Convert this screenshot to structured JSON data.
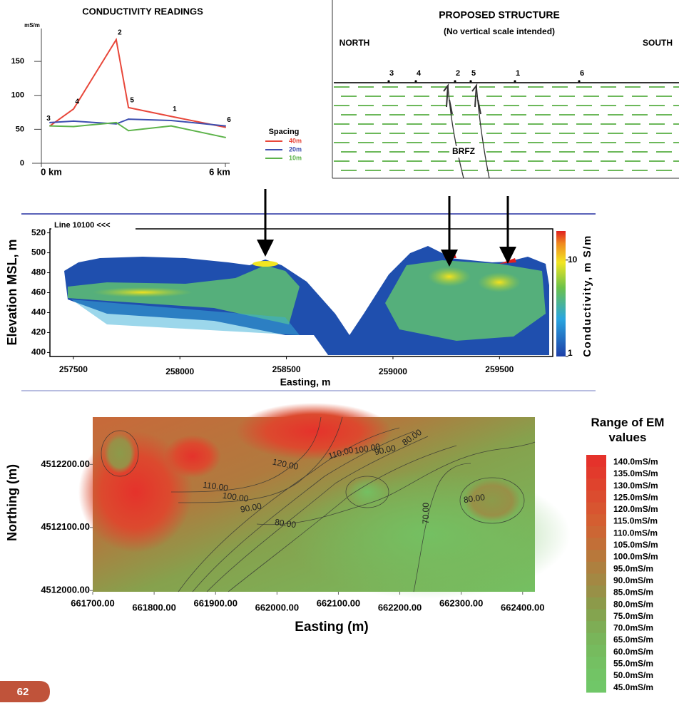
{
  "chart_data": [
    {
      "type": "line",
      "title": "CONDUCTIVITY READINGS",
      "y_label": "mS/m",
      "x": [
        0.28,
        1.05,
        2.44,
        2.84,
        4.23,
        6.0
      ],
      "point_labels": [
        "3",
        "4",
        "2",
        "5",
        "1",
        "6"
      ],
      "series": [
        {
          "name": "40m",
          "color": "#e8473a",
          "values": [
            55,
            80,
            182,
            82,
            69,
            53
          ]
        },
        {
          "name": "20m",
          "color": "#3d4fb0",
          "values": [
            60,
            62,
            58,
            65,
            63,
            55
          ]
        },
        {
          "name": "10m",
          "color": "#5db34a",
          "values": [
            55,
            54,
            60,
            48,
            55,
            38
          ]
        }
      ],
      "legend_title": "Spacing",
      "xlim": [
        0,
        6
      ],
      "ylim": [
        0,
        190
      ],
      "xticks": [
        {
          "value": 0,
          "label": "0 km"
        },
        {
          "value": 6,
          "label": "6 km"
        }
      ],
      "yticks": [
        0,
        50,
        100,
        150
      ]
    },
    {
      "type": "heatmap",
      "title": "Line 10100 <<<",
      "x_label": "Easting, m",
      "y_label": "Elevation MSL, m",
      "xlim": [
        257390,
        259750
      ],
      "ylim": [
        396,
        524
      ],
      "xticks": [
        257500,
        258000,
        258500,
        259000,
        259500
      ],
      "yticks": [
        400,
        420,
        440,
        460,
        480,
        500,
        520
      ],
      "colorbar_label": "Conductivity, m S/m",
      "clim": [
        1,
        20
      ],
      "log_color": true,
      "cticks": [
        1,
        10
      ]
    },
    {
      "type": "contour",
      "x_label": "Easting (m)",
      "y_label": "Northing (m)",
      "xlim": [
        661700,
        662420
      ],
      "ylim": [
        4511998,
        4512275
      ],
      "xticks": [
        {
          "value": 661700,
          "label": "661700.00"
        },
        {
          "value": 661800,
          "label": "661800.00"
        },
        {
          "value": 661900,
          "label": "661900.00"
        },
        {
          "value": 662000,
          "label": "662000.00"
        },
        {
          "value": 662100,
          "label": "662100.00"
        },
        {
          "value": 662200,
          "label": "662200.00"
        },
        {
          "value": 662300,
          "label": "662300.00"
        },
        {
          "value": 662400,
          "label": "662400.00"
        }
      ],
      "yticks": [
        {
          "value": 4512000,
          "label": "4512000.00"
        },
        {
          "value": 4512100,
          "label": "4512100.00"
        },
        {
          "value": 4512200,
          "label": "4512200.00"
        }
      ],
      "contour_labels": [
        "120.00",
        "110.00",
        "100.00",
        "90.00",
        "80.00",
        "110.00",
        "100.00",
        "90.00",
        "80.00",
        "70.00",
        "80.00"
      ],
      "legend_title": "Range of EM values",
      "levels": [
        {
          "value": 140,
          "label": "140.0mS/m",
          "color": "#e5322b"
        },
        {
          "value": 135,
          "label": "135.0mS/m",
          "color": "#e23a2c"
        },
        {
          "value": 130,
          "label": "130.0mS/m",
          "color": "#df432d"
        },
        {
          "value": 125,
          "label": "125.0mS/m",
          "color": "#db4c2f"
        },
        {
          "value": 120,
          "label": "120.0mS/m",
          "color": "#d85530"
        },
        {
          "value": 115,
          "label": "115.0mS/m",
          "color": "#d45e31"
        },
        {
          "value": 110,
          "label": "110.0mS/m",
          "color": "#cc6634"
        },
        {
          "value": 105,
          "label": "105.0mS/m",
          "color": "#c26f37"
        },
        {
          "value": 100,
          "label": "100.0mS/m",
          "color": "#b8783b"
        },
        {
          "value": 95,
          "label": "95.0mS/m",
          "color": "#ad803f"
        },
        {
          "value": 90,
          "label": "90.0mS/m",
          "color": "#a38843"
        },
        {
          "value": 85,
          "label": "85.0mS/m",
          "color": "#989047"
        },
        {
          "value": 80,
          "label": "80.0mS/m",
          "color": "#8c9a4a"
        },
        {
          "value": 75,
          "label": "75.0mS/m",
          "color": "#84a44f"
        },
        {
          "value": 70,
          "label": "70.0mS/m",
          "color": "#7ead55"
        },
        {
          "value": 65,
          "label": "65.0mS/m",
          "color": "#79b55a"
        },
        {
          "value": 60,
          "label": "60.0mS/m",
          "color": "#76bb5e"
        },
        {
          "value": 55,
          "label": "55.0mS/m",
          "color": "#74c062"
        },
        {
          "value": 50,
          "label": "50.0mS/m",
          "color": "#72c465"
        },
        {
          "value": 45,
          "label": "45.0mS/m",
          "color": "#70c768"
        }
      ]
    }
  ],
  "diagram": {
    "title": "PROPOSED STRUCTURE",
    "subtitle": "(No vertical scale intended)",
    "left_label": "NORTH",
    "right_label": "SOUTH",
    "stations": [
      "3",
      "4",
      "2",
      "5",
      "1",
      "6"
    ],
    "zone_label": "BRFZ"
  },
  "page_number": "62"
}
